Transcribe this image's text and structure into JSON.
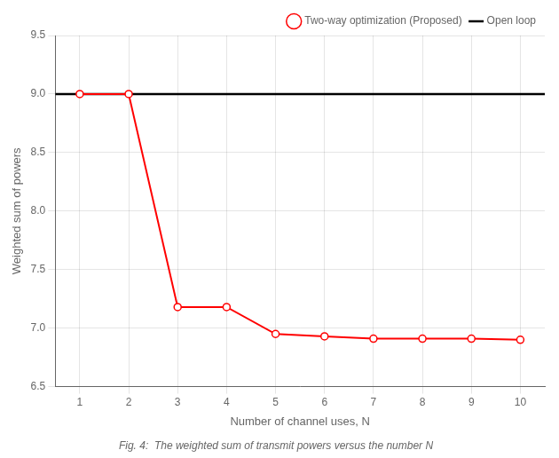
{
  "chart_data": {
    "type": "line",
    "x": [
      1,
      2,
      3,
      4,
      5,
      6,
      7,
      8,
      9,
      10
    ],
    "series": [
      {
        "name": "Two-way optimization (Proposed)",
        "color": "#FF0000",
        "marker": "circle",
        "line_style": "solid",
        "values": [
          9.0,
          9.0,
          7.18,
          7.18,
          6.95,
          6.93,
          6.91,
          6.91,
          6.91,
          6.9
        ]
      },
      {
        "name": "Open loop",
        "type": "hline",
        "color": "#000000",
        "line_style": "solid",
        "value": 9.0
      }
    ],
    "xlim": [
      0.5,
      10.5
    ],
    "ylim": [
      6.5,
      9.5
    ],
    "xticks": [
      1,
      2,
      3,
      4,
      5,
      6,
      7,
      8,
      9,
      10
    ],
    "yticks": [
      6.5,
      {
        "value": 7.0,
        "label": "7.0"
      },
      7.5,
      {
        "value": 8.0,
        "label": "8.0"
      },
      8.5,
      {
        "value": 9.0,
        "label": "9.0"
      },
      9.5
    ],
    "xlabel": "Number of channel uses, N",
    "ylabel": "Weighted sum of powers",
    "caption": "Fig. 4:  The weighted sum of transmit powers versus the number N",
    "grid": true,
    "legend": "upper right"
  }
}
